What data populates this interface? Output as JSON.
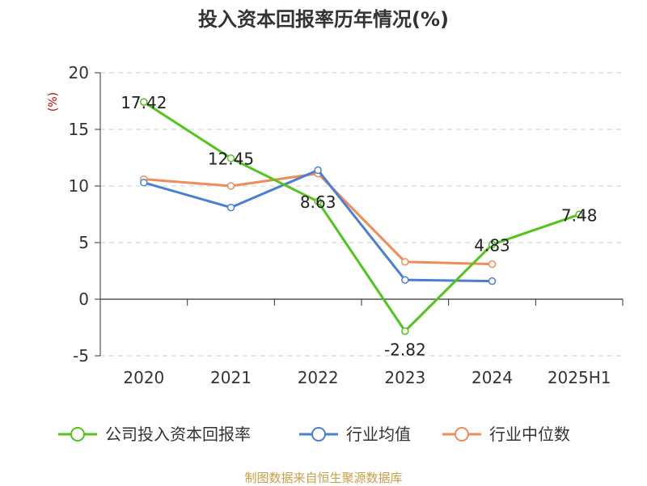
{
  "chart_data": {
    "type": "line",
    "title": "投入资本回报率历年情况(%)",
    "ylabel": "(%)",
    "xlabel": "",
    "categories": [
      "2020",
      "2021",
      "2022",
      "2023",
      "2024",
      "2025H1"
    ],
    "yticks": [
      "-5",
      "0",
      "5",
      "10",
      "15",
      "20"
    ],
    "ylim": [
      -5,
      20
    ],
    "grid": true,
    "legend_position": "bottom",
    "series": [
      {
        "name": "公司投入资本回报率",
        "color": "#52c41a",
        "values": [
          17.42,
          12.45,
          8.63,
          -2.82,
          4.83,
          7.48
        ],
        "labels": [
          "17.42",
          "12.45",
          "8.63",
          "-2.82",
          "4.83",
          "7.48"
        ]
      },
      {
        "name": "行业均值",
        "color": "#4a7fd4",
        "values": [
          10.3,
          8.1,
          11.4,
          1.7,
          1.6,
          null
        ]
      },
      {
        "name": "行业中位数",
        "color": "#f08c5a",
        "values": [
          10.6,
          10.0,
          11.1,
          3.3,
          3.1,
          null
        ]
      }
    ],
    "source": "制图数据来自恒生聚源数据库"
  }
}
